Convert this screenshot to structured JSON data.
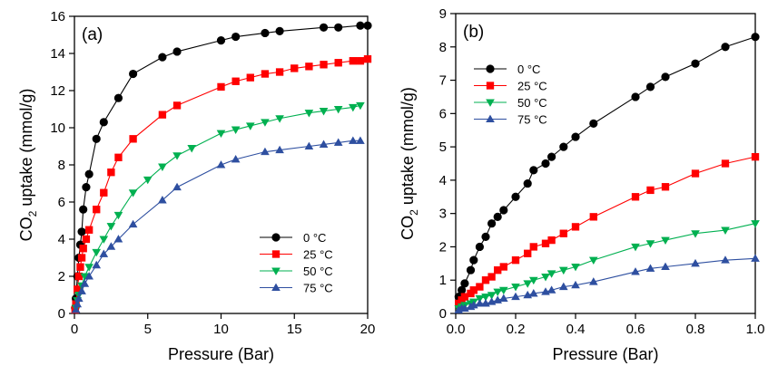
{
  "chart_data": [
    {
      "type": "line",
      "panel_label": "(a)",
      "xlabel": "Pressure (Bar)",
      "ylabel": "CO2 uptake (mmol/g)",
      "ylabel_parts": {
        "pre": "CO",
        "sub": "2",
        "post": " uptake (mmol/g)"
      },
      "xlim": [
        0,
        20
      ],
      "ylim": [
        0,
        16
      ],
      "xticks": [
        0,
        5,
        10,
        15,
        20
      ],
      "yticks": [
        0,
        2,
        4,
        6,
        8,
        10,
        12,
        14,
        16
      ],
      "grid": false,
      "legend_position": "lower-right",
      "series": [
        {
          "name": "0 °C",
          "color": "#000000",
          "marker": "circle",
          "x": [
            0.05,
            0.1,
            0.2,
            0.3,
            0.4,
            0.5,
            0.6,
            0.8,
            1.0,
            1.5,
            2,
            3,
            4,
            6,
            7,
            10,
            11,
            13,
            14,
            17,
            18,
            19.5,
            20
          ],
          "y": [
            0.3,
            0.8,
            2.0,
            3.0,
            3.7,
            4.4,
            5.6,
            6.8,
            7.5,
            9.4,
            10.3,
            11.6,
            12.9,
            13.8,
            14.1,
            14.7,
            14.9,
            15.1,
            15.2,
            15.4,
            15.4,
            15.5,
            15.5
          ]
        },
        {
          "name": "25 °C",
          "color": "#ff0000",
          "marker": "square",
          "x": [
            0.05,
            0.1,
            0.2,
            0.3,
            0.4,
            0.5,
            0.6,
            0.8,
            1.0,
            1.5,
            2,
            2.5,
            3,
            4,
            6,
            7,
            10,
            11,
            12,
            13,
            14,
            15,
            16,
            17,
            18,
            19,
            19.5,
            20
          ],
          "y": [
            0.2,
            0.5,
            1.3,
            2.0,
            2.5,
            3.0,
            3.5,
            4.0,
            4.5,
            5.6,
            6.5,
            7.6,
            8.4,
            9.4,
            10.7,
            11.2,
            12.2,
            12.5,
            12.7,
            12.9,
            13.0,
            13.2,
            13.3,
            13.4,
            13.5,
            13.6,
            13.6,
            13.7
          ]
        },
        {
          "name": "50 °C",
          "color": "#00b050",
          "marker": "triangle-down",
          "x": [
            0.1,
            0.2,
            0.3,
            0.5,
            0.7,
            1.0,
            1.5,
            2,
            2.5,
            3,
            4,
            5,
            6,
            7,
            8,
            10,
            11,
            12,
            13,
            14,
            16,
            17,
            18,
            19,
            19.5
          ],
          "y": [
            0.3,
            0.7,
            1.0,
            1.5,
            2.0,
            2.5,
            3.3,
            4.0,
            4.7,
            5.3,
            6.5,
            7.2,
            7.9,
            8.5,
            8.9,
            9.7,
            9.9,
            10.1,
            10.3,
            10.5,
            10.8,
            10.9,
            11.0,
            11.1,
            11.2
          ]
        },
        {
          "name": "75 °C",
          "color": "#2e4fa0",
          "marker": "triangle-up",
          "x": [
            0.1,
            0.2,
            0.3,
            0.5,
            0.7,
            1.0,
            1.5,
            2,
            2.5,
            3,
            4,
            6,
            7,
            10,
            11,
            13,
            14,
            16,
            17,
            18,
            19,
            19.5
          ],
          "y": [
            0.2,
            0.5,
            0.8,
            1.2,
            1.6,
            2.0,
            2.6,
            3.2,
            3.6,
            4.0,
            4.8,
            6.1,
            6.8,
            8.0,
            8.3,
            8.7,
            8.8,
            9.0,
            9.1,
            9.2,
            9.3,
            9.3
          ]
        }
      ]
    },
    {
      "type": "line",
      "panel_label": "(b)",
      "xlabel": "Pressure (Bar)",
      "ylabel": "CO2 uptake (mmol/g)",
      "ylabel_parts": {
        "pre": "CO",
        "sub": "2",
        "post": " uptake (mmol/g)"
      },
      "xlim": [
        0,
        1.0
      ],
      "ylim": [
        0,
        9
      ],
      "xticks": [
        0.0,
        0.2,
        0.4,
        0.6,
        0.8,
        1.0
      ],
      "xtick_labels": [
        "0.0",
        "0.2",
        "0.4",
        "0.6",
        "0.8",
        "1.0"
      ],
      "yticks": [
        0,
        1,
        2,
        3,
        4,
        5,
        6,
        7,
        8,
        9
      ],
      "grid": false,
      "legend_position": "upper-left",
      "series": [
        {
          "name": "0 °C",
          "color": "#000000",
          "marker": "circle",
          "x": [
            0.01,
            0.02,
            0.03,
            0.05,
            0.06,
            0.08,
            0.1,
            0.12,
            0.14,
            0.16,
            0.2,
            0.24,
            0.26,
            0.3,
            0.32,
            0.36,
            0.4,
            0.46,
            0.6,
            0.65,
            0.7,
            0.8,
            0.9,
            1.0
          ],
          "y": [
            0.5,
            0.7,
            0.9,
            1.3,
            1.6,
            2.0,
            2.3,
            2.7,
            2.9,
            3.1,
            3.5,
            3.9,
            4.3,
            4.5,
            4.7,
            5.0,
            5.3,
            5.7,
            6.5,
            6.8,
            7.1,
            7.5,
            8.0,
            8.3
          ]
        },
        {
          "name": "25 °C",
          "color": "#ff0000",
          "marker": "square",
          "x": [
            0.01,
            0.02,
            0.03,
            0.05,
            0.06,
            0.08,
            0.1,
            0.12,
            0.14,
            0.16,
            0.2,
            0.24,
            0.26,
            0.3,
            0.32,
            0.36,
            0.4,
            0.46,
            0.6,
            0.65,
            0.7,
            0.8,
            0.9,
            1.0
          ],
          "y": [
            0.3,
            0.4,
            0.5,
            0.6,
            0.7,
            0.8,
            1.0,
            1.1,
            1.3,
            1.4,
            1.6,
            1.8,
            2.0,
            2.1,
            2.2,
            2.4,
            2.6,
            2.9,
            3.5,
            3.7,
            3.8,
            4.2,
            4.5,
            4.7
          ]
        },
        {
          "name": "50 °C",
          "color": "#00b050",
          "marker": "triangle-down",
          "x": [
            0.01,
            0.02,
            0.03,
            0.05,
            0.06,
            0.08,
            0.1,
            0.12,
            0.14,
            0.16,
            0.2,
            0.24,
            0.26,
            0.3,
            0.32,
            0.36,
            0.4,
            0.46,
            0.6,
            0.65,
            0.7,
            0.8,
            0.9,
            1.0
          ],
          "y": [
            0.15,
            0.2,
            0.25,
            0.3,
            0.35,
            0.45,
            0.5,
            0.55,
            0.65,
            0.7,
            0.8,
            0.9,
            1.0,
            1.1,
            1.2,
            1.3,
            1.4,
            1.6,
            2.0,
            2.1,
            2.2,
            2.4,
            2.5,
            2.7
          ]
        },
        {
          "name": "75 °C",
          "color": "#2e4fa0",
          "marker": "triangle-up",
          "x": [
            0.01,
            0.02,
            0.03,
            0.05,
            0.06,
            0.08,
            0.1,
            0.12,
            0.14,
            0.16,
            0.2,
            0.24,
            0.26,
            0.3,
            0.32,
            0.36,
            0.4,
            0.46,
            0.6,
            0.65,
            0.7,
            0.8,
            0.9,
            1.0
          ],
          "y": [
            0.1,
            0.15,
            0.15,
            0.2,
            0.25,
            0.3,
            0.3,
            0.35,
            0.4,
            0.45,
            0.5,
            0.55,
            0.6,
            0.65,
            0.7,
            0.8,
            0.85,
            0.95,
            1.25,
            1.35,
            1.4,
            1.5,
            1.6,
            1.65
          ]
        }
      ]
    }
  ]
}
